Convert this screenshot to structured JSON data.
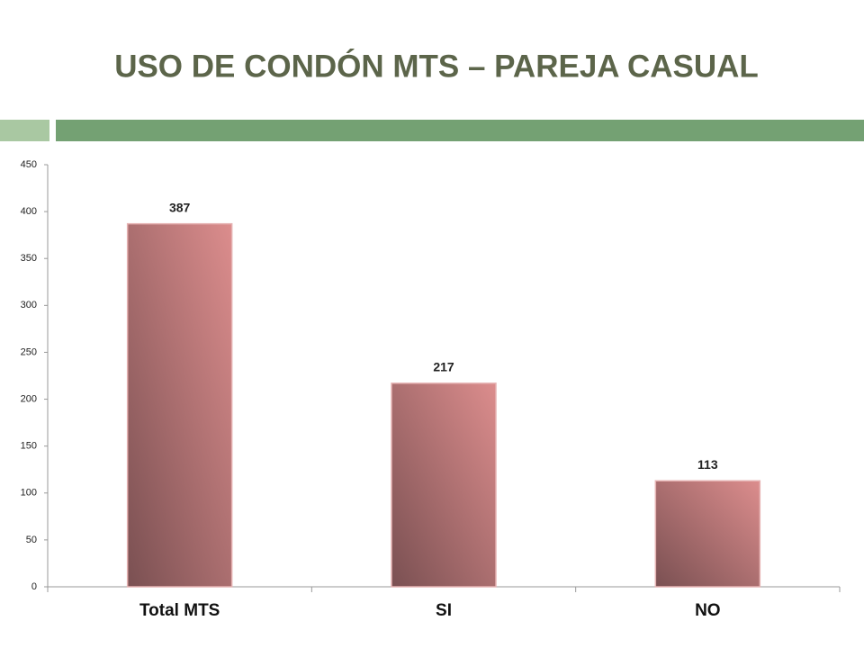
{
  "chart_data": {
    "type": "bar",
    "title": "USO DE CONDÓN MTS – PAREJA CASUAL",
    "categories": [
      "Total MTS",
      "SI",
      "NO"
    ],
    "values": [
      387,
      217,
      113
    ],
    "color": "#dc8d8d",
    "ylim": [
      0,
      450
    ],
    "yticks": [
      0,
      50,
      100,
      150,
      200,
      250,
      300,
      350,
      400,
      450
    ],
    "grid": false
  }
}
